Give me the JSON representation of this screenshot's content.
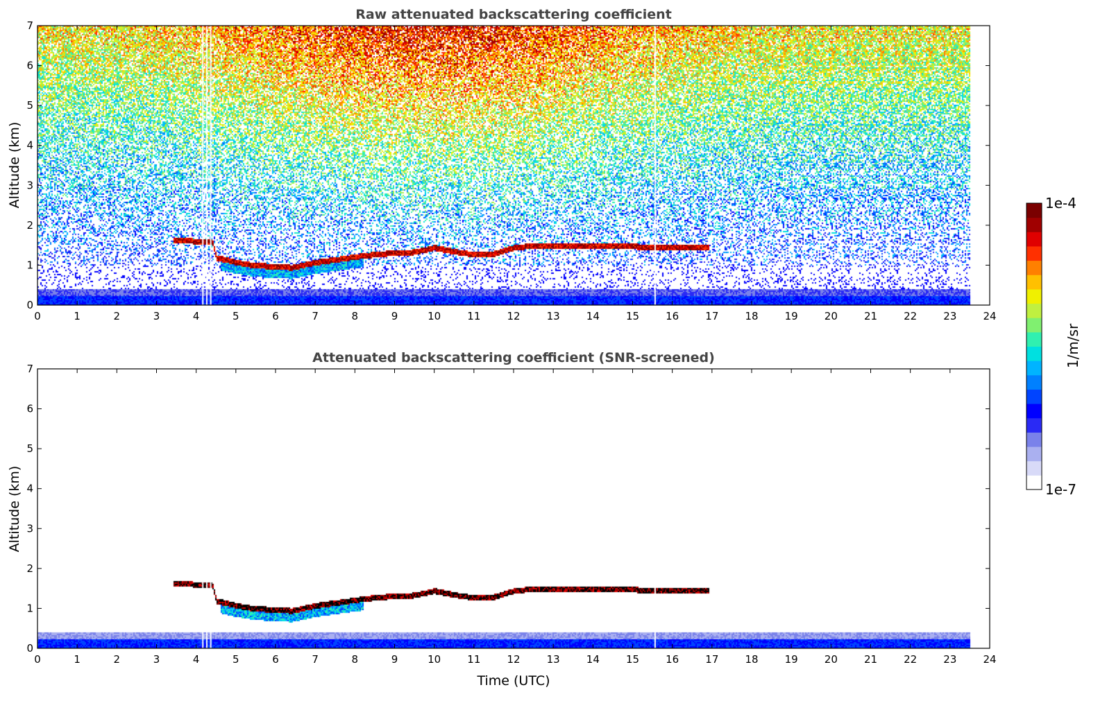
{
  "chart_data": [
    {
      "type": "heatmap",
      "title": "Raw attenuated backscattering coefficient",
      "xlabel": "",
      "ylabel": "Altitude (km)",
      "xlim": [
        0,
        24
      ],
      "ylim": [
        0,
        7
      ],
      "xticks": [
        "0",
        "1",
        "2",
        "3",
        "4",
        "5",
        "6",
        "7",
        "8",
        "9",
        "10",
        "11",
        "12",
        "13",
        "14",
        "15",
        "16",
        "17",
        "18",
        "19",
        "20",
        "21",
        "22",
        "23",
        "24"
      ],
      "yticks": [
        "0",
        "1",
        "2",
        "3",
        "4",
        "5",
        "6",
        "7"
      ],
      "data_end_time": 23.5,
      "gap_times": [
        4.15,
        4.25,
        4.35,
        15.55
      ],
      "cloud_layer": {
        "times": [
          3.4,
          4.4,
          4.5,
          5.0,
          5.5,
          6.0,
          6.4,
          7.0,
          7.5,
          8.0,
          8.5,
          9.0,
          9.5,
          10.0,
          10.5,
          11.0,
          11.5,
          12.0,
          12.5,
          13.0,
          14.0,
          15.0,
          16.0,
          16.9
        ],
        "altitudes_km": [
          1.65,
          1.58,
          1.2,
          1.08,
          1.0,
          0.98,
          0.95,
          1.08,
          1.15,
          1.22,
          1.28,
          1.32,
          1.34,
          1.45,
          1.35,
          1.28,
          1.3,
          1.45,
          1.5,
          1.5,
          1.5,
          1.48,
          1.45,
          1.45
        ]
      },
      "boundary_layer_top_km": 0.4,
      "noise_description": "dense high-altitude background increasing toward midday"
    },
    {
      "type": "heatmap",
      "title": "Attenuated backscattering coefficient (SNR-screened)",
      "xlabel": "Time (UTC)",
      "ylabel": "Altitude (km)",
      "xlim": [
        0,
        24
      ],
      "ylim": [
        0,
        7
      ],
      "xticks": [
        "0",
        "1",
        "2",
        "3",
        "4",
        "5",
        "6",
        "7",
        "8",
        "9",
        "10",
        "11",
        "12",
        "13",
        "14",
        "15",
        "16",
        "17",
        "18",
        "19",
        "20",
        "21",
        "22",
        "23",
        "24"
      ],
      "yticks": [
        "0",
        "1",
        "2",
        "3",
        "4",
        "5",
        "6",
        "7"
      ],
      "data_end_time": 23.5,
      "gap_times": [
        4.15,
        4.25,
        4.35,
        15.55
      ]
    }
  ],
  "colorbar": {
    "label": "1/m/sr",
    "max_label": "1e-4",
    "min_label": "1e-7",
    "colors": [
      "#ffffff",
      "#d8daf8",
      "#aab0f0",
      "#7a82ea",
      "#2a2af5",
      "#0000ff",
      "#0044ff",
      "#0080ff",
      "#00b4ff",
      "#00e0e0",
      "#30f0b0",
      "#80f070",
      "#c0f040",
      "#f0f000",
      "#ffc000",
      "#ff8000",
      "#ff3000",
      "#e00000",
      "#a00000",
      "#7a0000"
    ]
  }
}
